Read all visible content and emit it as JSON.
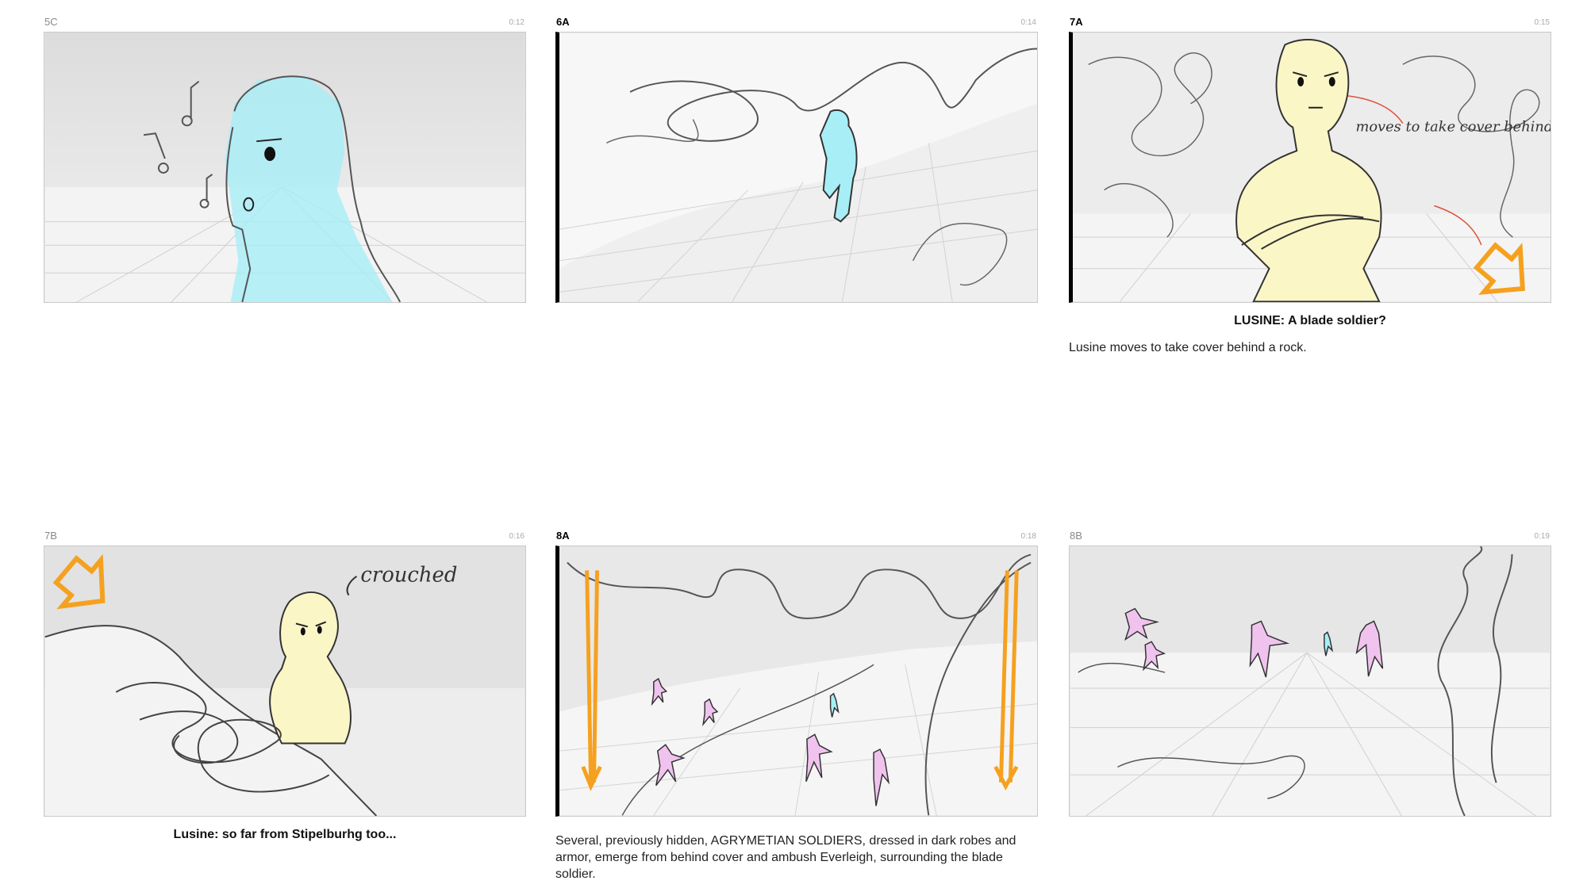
{
  "panels": [
    {
      "shot": "5C",
      "time": "0:12",
      "dialogue": "",
      "action": ""
    },
    {
      "shot": "6A",
      "time": "0:14",
      "dialogue": "",
      "action": ""
    },
    {
      "shot": "7A",
      "time": "0:15",
      "dialogue": "LUSINE: A blade soldier?",
      "action": "Lusine moves to take cover behind a rock.",
      "annotation": "moves to take cover behind rock"
    },
    {
      "shot": "7B",
      "time": "0:16",
      "dialogue": "Lusine: so far from Stipelburhg too...",
      "action": "",
      "annotation": "crouched"
    },
    {
      "shot": "8A",
      "time": "0:18",
      "dialogue": "",
      "action": "Several, previously hidden, AGRYMETIAN SOLDIERS, dressed in dark robes and armor, emerge from behind cover and ambush Everleigh, surrounding the blade soldier."
    },
    {
      "shot": "8B",
      "time": "0:19",
      "dialogue": "",
      "action": ""
    }
  ],
  "colors": {
    "figure_cyan": "#a8eef7",
    "figure_yellow": "#fbf6c6",
    "figure_pink": "#f0c3ee",
    "arrow_orange": "#f5a11f",
    "arrow_red": "#e0503a",
    "sketch_line": "#444444"
  }
}
